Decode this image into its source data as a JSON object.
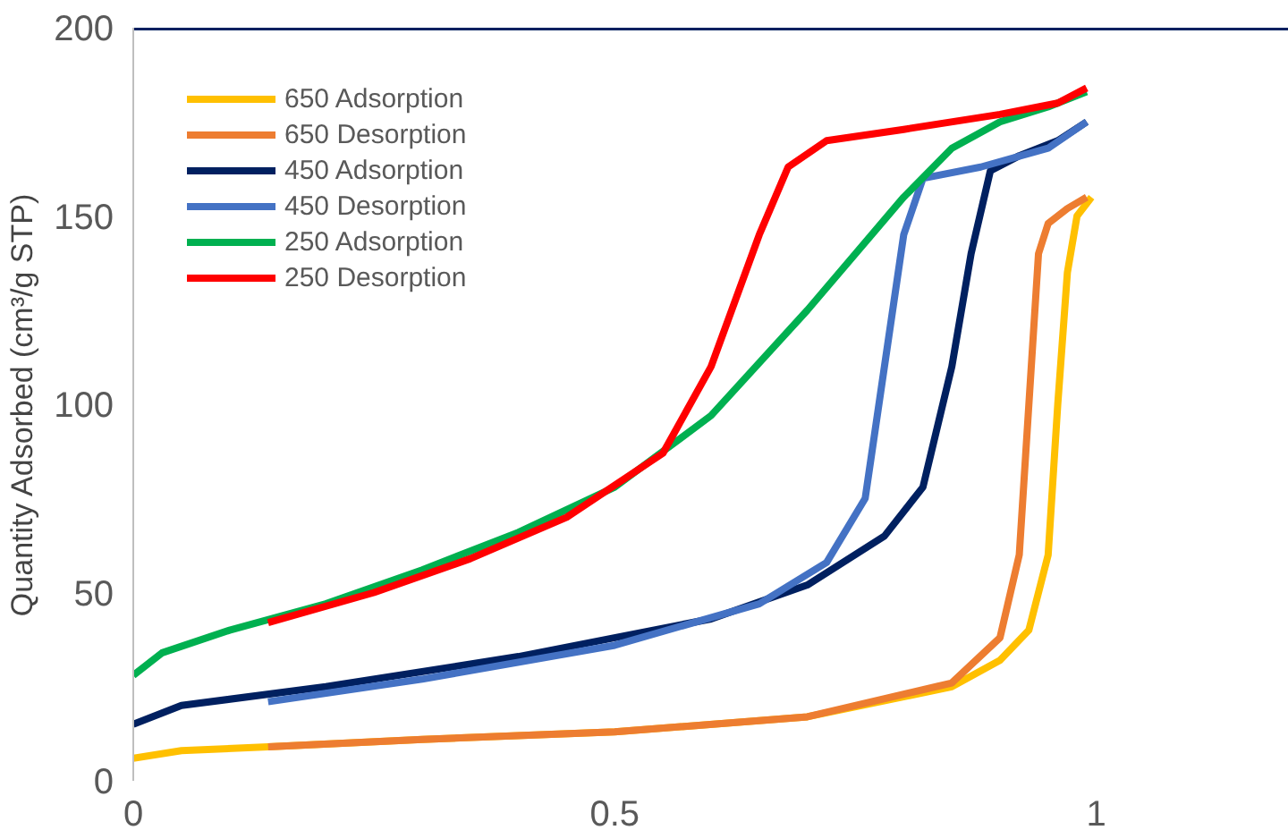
{
  "chart_data": {
    "type": "line",
    "ylabel": "Quantity Adsorbed (cm³/g STP)",
    "xlim": [
      0,
      1.2
    ],
    "xticks": [
      0,
      0.5,
      1
    ],
    "ylim": [
      0,
      200
    ],
    "yticks": [
      0,
      50,
      100,
      150,
      200
    ],
    "grid": false,
    "legend": "top left",
    "marker": "none",
    "line_style": "solid",
    "series": [
      {
        "name": "650 Adsorption",
        "color": "#ffc000",
        "x": [
          0,
          0.05,
          0.14,
          0.3,
          0.5,
          0.7,
          0.85,
          0.9,
          0.93,
          0.95,
          0.96,
          0.97,
          0.98,
          0.995
        ],
        "values": [
          6,
          8,
          9,
          11,
          13,
          17,
          25,
          32,
          40,
          60,
          100,
          135,
          150,
          155
        ]
      },
      {
        "name": "650 Desorption",
        "color": "#ed7d31",
        "x": [
          0.14,
          0.3,
          0.5,
          0.7,
          0.85,
          0.9,
          0.92,
          0.93,
          0.94,
          0.95,
          0.97,
          0.99
        ],
        "values": [
          9,
          11,
          13,
          17,
          26,
          38,
          60,
          100,
          140,
          148,
          152,
          155
        ]
      },
      {
        "name": "450 Adsorption",
        "color": "#002060",
        "x": [
          0,
          0.05,
          0.2,
          0.4,
          0.6,
          0.7,
          0.78,
          0.82,
          0.85,
          0.87,
          0.89,
          0.92,
          0.96,
          0.99
        ],
        "values": [
          15,
          20,
          25,
          33,
          43,
          52,
          65,
          78,
          110,
          140,
          162,
          166,
          170,
          175
        ]
      },
      {
        "name": "450 Desorption",
        "color": "#4472c4",
        "x": [
          0.14,
          0.3,
          0.5,
          0.65,
          0.72,
          0.76,
          0.78,
          0.8,
          0.82,
          0.88,
          0.95,
          0.99
        ],
        "values": [
          21,
          27,
          36,
          47,
          58,
          75,
          110,
          145,
          160,
          163,
          168,
          175
        ]
      },
      {
        "name": "250 Adsorption",
        "color": "#00b050",
        "x": [
          0,
          0.03,
          0.1,
          0.2,
          0.3,
          0.4,
          0.5,
          0.6,
          0.7,
          0.8,
          0.85,
          0.9,
          0.95,
          0.99
        ],
        "values": [
          28,
          34,
          40,
          47,
          56,
          66,
          78,
          97,
          125,
          155,
          168,
          175,
          179,
          183
        ]
      },
      {
        "name": "250 Desorption",
        "color": "#ff0000",
        "x": [
          0.14,
          0.25,
          0.35,
          0.45,
          0.55,
          0.6,
          0.65,
          0.68,
          0.72,
          0.8,
          0.9,
          0.96,
          0.99
        ],
        "values": [
          42,
          50,
          59,
          70,
          87,
          110,
          145,
          163,
          170,
          173,
          177,
          180,
          184
        ]
      }
    ]
  }
}
